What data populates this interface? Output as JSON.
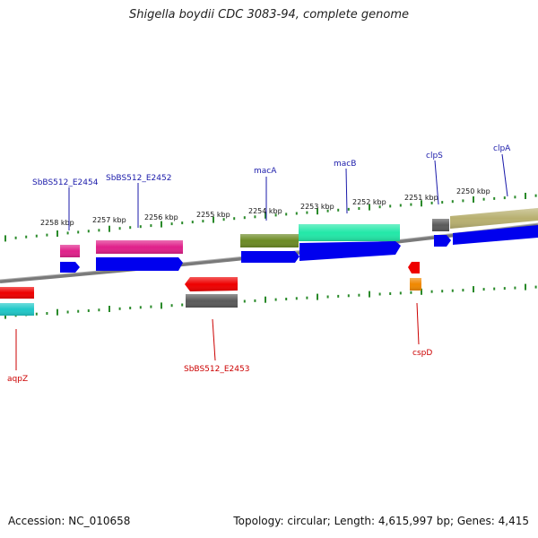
{
  "title": "Shigella boydii CDC 3083-94, complete genome",
  "accession": "Accession: NC_010658",
  "topology": "Topology: circular; Length: 4,615,997 bp; Genes: 4,415",
  "scale_labels": [
    "2258 kbp",
    "2257 kbp",
    "2256 kbp",
    "2255 kbp",
    "2254 kbp",
    "2253 kbp",
    "2252 kbp",
    "2251 kbp",
    "2250 kbp"
  ],
  "genes_top": [
    "SbBS512_E2454",
    "SbBS512_E2452",
    "macA",
    "macB",
    "clpS",
    "clpA"
  ],
  "genes_bottom": [
    "aqpZ",
    "SbBS512_E2453",
    "cspD"
  ],
  "colors": {
    "tick": "#2a8a2a",
    "backbone": "#7a7a7a",
    "label_top": "#1a1aaa",
    "label_bottom": "#cc0000",
    "cds": "#0000ee",
    "magenta": "#e0208a",
    "olive": "#6b8a24",
    "mint": "#22e8a8",
    "gray": "#5a5a5a",
    "khaki": "#b8b070",
    "red": "#ee0000",
    "orange": "#f08800",
    "teal": "#20c8c8"
  }
}
